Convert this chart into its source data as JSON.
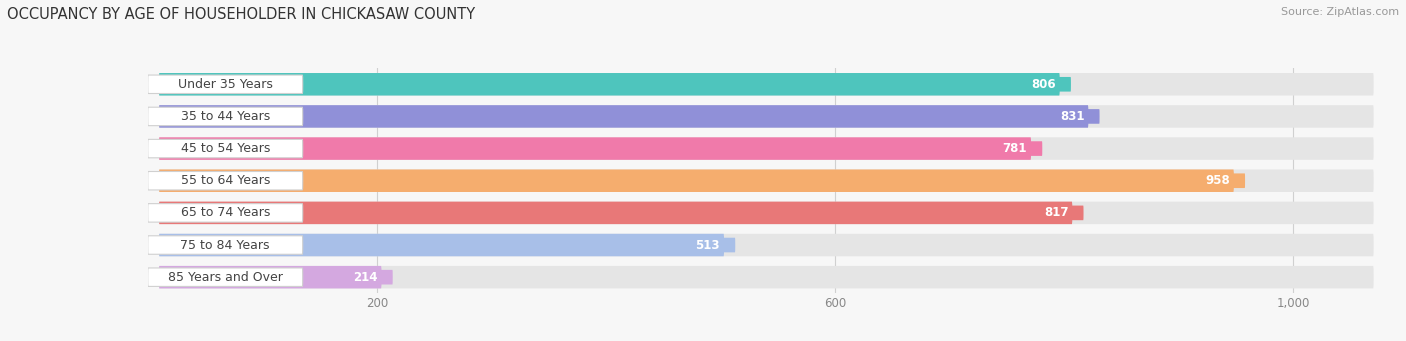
{
  "title": "OCCUPANCY BY AGE OF HOUSEHOLDER IN CHICKASAW COUNTY",
  "source": "Source: ZipAtlas.com",
  "categories": [
    "Under 35 Years",
    "35 to 44 Years",
    "45 to 54 Years",
    "55 to 64 Years",
    "65 to 74 Years",
    "75 to 84 Years",
    "85 Years and Over"
  ],
  "values": [
    806,
    831,
    781,
    958,
    817,
    513,
    214
  ],
  "bar_colors": [
    "#4ec5bd",
    "#9090d8",
    "#f07aaa",
    "#f5ad6e",
    "#e87878",
    "#a8bfe8",
    "#d4a8e0"
  ],
  "value_pill_colors": [
    "#4ec5bd",
    "#9090d8",
    "#f07aaa",
    "#f5ad6e",
    "#e87878",
    "#a8bfe8",
    "#d4a8e0"
  ],
  "bar_bg_color": "#e8e8e8",
  "xlim_max": 1080,
  "xticks": [
    200,
    600,
    1000
  ],
  "xtick_labels": [
    "200",
    "600",
    "1,000"
  ],
  "title_fontsize": 10.5,
  "source_fontsize": 8,
  "label_fontsize": 9,
  "value_fontsize": 8.5,
  "bg_color": "#f7f7f7"
}
